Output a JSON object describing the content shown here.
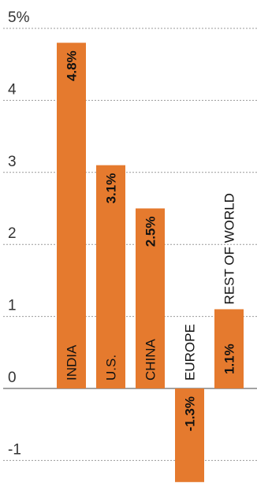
{
  "chart_data": {
    "type": "bar",
    "title": "",
    "xlabel": "",
    "ylabel": "",
    "ylim": [
      -1.3,
      5
    ],
    "y_ticks": [
      -1,
      0,
      1,
      2,
      3,
      4,
      5
    ],
    "y_tick_labels": [
      "-1",
      "0",
      "1",
      "2",
      "3",
      "4",
      "5%"
    ],
    "grid": true,
    "categories": [
      "INDIA",
      "U.S.",
      "CHINA",
      "EUROPE",
      "REST OF WORLD"
    ],
    "values": [
      4.8,
      3.1,
      2.5,
      -1.3,
      1.1
    ],
    "value_labels": [
      "4.8%",
      "3.1%",
      "2.5%",
      "-1.3%",
      "1.1%"
    ],
    "bar_color": "#E57A2E"
  }
}
